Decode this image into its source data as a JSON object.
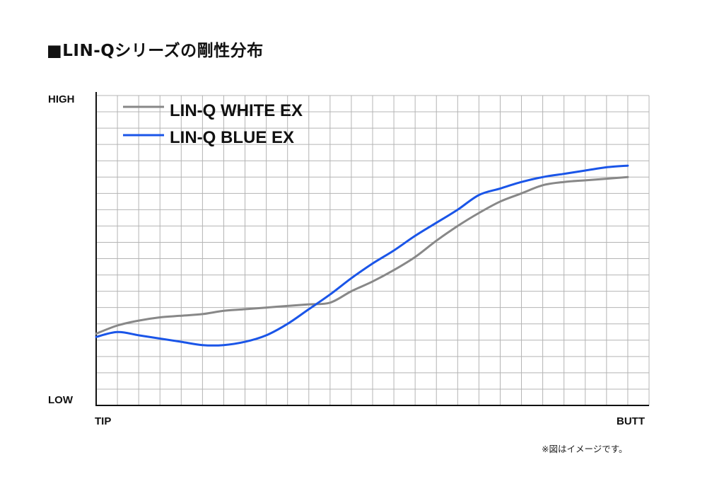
{
  "title": "■LIN-Qシリーズの剛性分布",
  "note": "※図はイメージです。",
  "chart_data": {
    "type": "line",
    "title": "■LIN-Qシリーズの剛性分布",
    "y_top_label": "HIGH",
    "y_bottom_label": "LOW",
    "x_left_label": "TIP",
    "x_right_label": "BUTT",
    "grid": true,
    "legend_position": "top-left",
    "xlim": [
      0,
      26
    ],
    "ylim": [
      0,
      19
    ],
    "series": [
      {
        "name": "LIN-Q WHITE EX",
        "color": "#888888",
        "x": [
          0,
          1,
          2,
          3,
          4,
          5,
          6,
          7,
          8,
          9,
          10,
          11,
          12,
          13,
          14,
          15,
          16,
          17,
          18,
          19,
          20,
          21,
          22,
          23,
          24,
          25
        ],
        "y": [
          4.4,
          4.9,
          5.2,
          5.4,
          5.5,
          5.6,
          5.8,
          5.9,
          6.0,
          6.1,
          6.2,
          6.3,
          7.0,
          7.6,
          8.3,
          9.1,
          10.1,
          11.0,
          11.8,
          12.5,
          13.0,
          13.5,
          13.7,
          13.8,
          13.9,
          14.0
        ]
      },
      {
        "name": "LIN-Q BLUE EX",
        "color": "#1a55e8",
        "x": [
          0,
          1,
          2,
          3,
          4,
          5,
          6,
          7,
          8,
          9,
          10,
          11,
          12,
          13,
          14,
          15,
          16,
          17,
          18,
          19,
          20,
          21,
          22,
          23,
          24,
          25
        ],
        "y": [
          4.2,
          4.5,
          4.3,
          4.1,
          3.9,
          3.7,
          3.7,
          3.9,
          4.3,
          5.0,
          5.9,
          6.8,
          7.8,
          8.7,
          9.5,
          10.4,
          11.2,
          12.0,
          12.9,
          13.3,
          13.7,
          14.0,
          14.2,
          14.4,
          14.6,
          14.7
        ]
      }
    ]
  }
}
